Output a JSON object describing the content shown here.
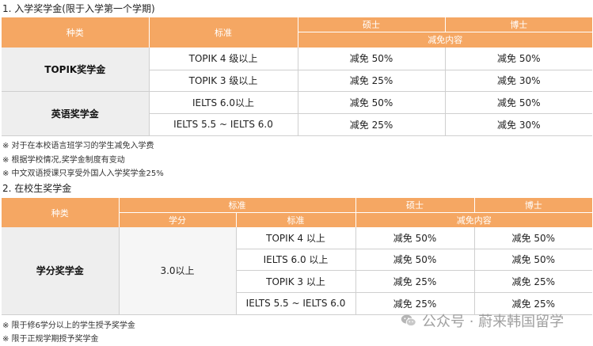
{
  "section1": {
    "title": "1. 入学奖学金(限于入学第一个学期)",
    "header": {
      "category": "种类",
      "standard": "标准",
      "master": "硕士",
      "doctor": "博士",
      "reduction": "减免内容"
    },
    "groups": [
      {
        "label": "TOPIK奖学金",
        "rows": [
          {
            "standard": "TOPIK 4 级以上",
            "master": "减免  50%",
            "doctor": "减免  50%"
          },
          {
            "standard": "TOPIK 3 级以上",
            "master": "减免  25%",
            "doctor": "减免  30%"
          }
        ]
      },
      {
        "label": "英语奖学金",
        "rows": [
          {
            "standard": "IELTS 6.0以上",
            "master": "减免 50%",
            "doctor": "减免 50%"
          },
          {
            "standard": "IELTS 5.5 ~ IELTS 6.0",
            "master": "减免 25%",
            "doctor": "减免  30%"
          }
        ]
      }
    ],
    "notes": [
      "※  对于在本校语言班学习的学生减免入学费",
      "※  根据学校情况,奖学金制度有变动",
      "※  中文双语授课只享受外国人入学奖学金25%"
    ]
  },
  "section2": {
    "title": "2. 在校生奖学金",
    "header": {
      "category": "种类",
      "standard": "标准",
      "credits": "学分",
      "standard2": "标准",
      "master": "硕士",
      "doctor": "博士",
      "reduction": "减免内容"
    },
    "label": "学分奖学金",
    "credits": "3.0以上",
    "rows": [
      {
        "standard": "TOPIK 4 以上",
        "master": "减免  50%",
        "doctor": "减免  50%"
      },
      {
        "standard": "IELTS 6.0 以上",
        "master": "减免  50%",
        "doctor": "减免  50%"
      },
      {
        "standard": "TOPIK 3 以上",
        "master": "减免 25%",
        "doctor": "减免 25%"
      },
      {
        "standard": "IELTS 5.5 ~ IELTS 6.0",
        "master": "减免 25%",
        "doctor": "减免 25%"
      }
    ],
    "notes": [
      "※ 限于修6学分以上的学生授予奖学金",
      "※ 限于正规学期授予奖学金"
    ]
  },
  "watermark": {
    "text": "公众号 · 蔚来韩国留学",
    "icon": "wechat-icon"
  }
}
